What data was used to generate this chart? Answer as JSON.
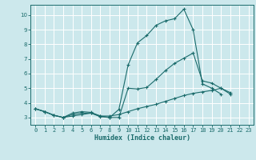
{
  "title": "",
  "xlabel": "Humidex (Indice chaleur)",
  "ylabel": "",
  "background_color": "#cce8ec",
  "grid_color": "#ffffff",
  "line_color": "#1a6b6b",
  "xlim": [
    -0.5,
    23.5
  ],
  "ylim": [
    2.5,
    10.7
  ],
  "xticks": [
    0,
    1,
    2,
    3,
    4,
    5,
    6,
    7,
    8,
    9,
    10,
    11,
    12,
    13,
    14,
    15,
    16,
    17,
    18,
    19,
    20,
    21,
    22,
    23
  ],
  "yticks": [
    3,
    4,
    5,
    6,
    7,
    8,
    9,
    10
  ],
  "series": [
    {
      "x": [
        0,
        1,
        2,
        3,
        4,
        5,
        6,
        7,
        8,
        9,
        10,
        11,
        12,
        13,
        14,
        15,
        16,
        17,
        18,
        19,
        20
      ],
      "y": [
        3.6,
        3.4,
        3.15,
        3.0,
        3.3,
        3.4,
        3.35,
        3.1,
        3.0,
        3.55,
        6.6,
        8.1,
        8.6,
        9.3,
        9.6,
        9.75,
        10.4,
        9.0,
        5.3,
        5.0,
        4.6
      ]
    },
    {
      "x": [
        0,
        1,
        2,
        3,
        4,
        5,
        6,
        7,
        8,
        9,
        10,
        11,
        12,
        13,
        14,
        15,
        16,
        17,
        18,
        19,
        20,
        21,
        22,
        23
      ],
      "y": [
        3.6,
        3.4,
        3.15,
        3.0,
        3.2,
        3.3,
        3.3,
        3.05,
        3.0,
        3.0,
        5.0,
        4.95,
        5.05,
        5.6,
        6.2,
        6.7,
        7.05,
        7.4,
        5.5,
        5.35,
        5.0,
        4.7,
        null,
        null
      ]
    },
    {
      "x": [
        0,
        1,
        2,
        3,
        4,
        5,
        6,
        7,
        8,
        9,
        10,
        11,
        12,
        13,
        14,
        15,
        16,
        17,
        18,
        19,
        20,
        21,
        22,
        23
      ],
      "y": [
        3.6,
        3.4,
        3.15,
        3.0,
        3.1,
        3.2,
        3.3,
        3.1,
        3.1,
        3.2,
        3.4,
        3.6,
        3.75,
        3.9,
        4.1,
        4.3,
        4.5,
        4.65,
        4.75,
        4.85,
        5.0,
        4.6,
        null,
        null
      ]
    }
  ]
}
